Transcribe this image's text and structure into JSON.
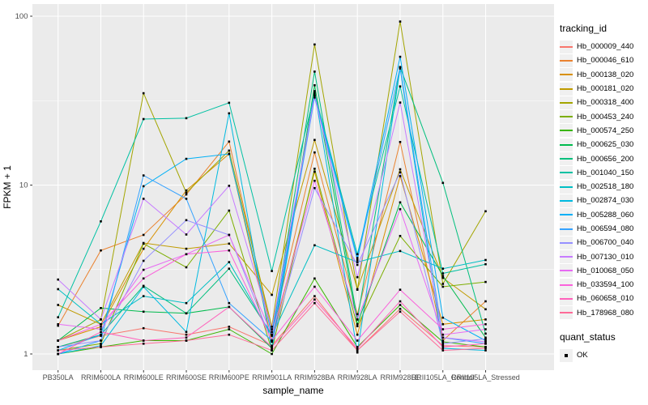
{
  "figure": {
    "background": "#FFFFFF",
    "panel_background": "#EBEBEB",
    "grid_color": "#FFFFFF",
    "axis_text_color": "#4D4D4D",
    "tick_color": "#333333",
    "marker_color": "#000000",
    "legend_key_background": "#F0F0F0"
  },
  "chart_data": {
    "type": "line",
    "title": "",
    "xlabel": "sample_name",
    "ylabel": "FPKM + 1",
    "y_scale": "log10",
    "y_axis_ticks": [
      {
        "label": "1",
        "value": 1
      },
      {
        "label": "10",
        "value": 10
      },
      {
        "label": "100",
        "value": 100
      }
    ],
    "y_minor_gridlines": [
      3.1623,
      31.623
    ],
    "ylim_log10": [
      -0.096,
      2.072
    ],
    "grid": true,
    "legend_position": "right",
    "legend_title": "tracking_id",
    "marker": "black-point",
    "categories": [
      "PB350LA",
      "RRIM600LA",
      "RRIM600LE",
      "RRIM600SE",
      "RRIM600PE",
      "RRIM901LA",
      "RRIM928BA",
      "RRIM928LA",
      "RRIM928LE",
      "RRII105LA_Control",
      "RRII105LA_Stressed"
    ],
    "series": [
      {
        "name": "Hb_000009_440",
        "color": "#F8766D",
        "values": [
          1.1,
          1.28,
          1.42,
          1.3,
          1.45,
          1.12,
          2.2,
          1.05,
          1.85,
          1.12,
          1.1
        ]
      },
      {
        "name": "Hb_000046_610",
        "color": "#EA8331",
        "values": [
          1.47,
          4.1,
          5.07,
          8.8,
          18.1,
          1.35,
          15.6,
          1.72,
          18,
          1.2,
          2.05
        ]
      },
      {
        "name": "Hb_000138_020",
        "color": "#D89000",
        "values": [
          1.2,
          1.45,
          4.2,
          9.3,
          15.3,
          1.2,
          12,
          1.3,
          11.3,
          1.5,
          1.6
        ]
      },
      {
        "name": "Hb_000181_020",
        "color": "#C09B00",
        "values": [
          1.95,
          1.5,
          4.54,
          4.2,
          4.5,
          2.24,
          18.5,
          2.42,
          12.4,
          2.82,
          1.84
        ]
      },
      {
        "name": "Hb_000318_400",
        "color": "#A3A500",
        "values": [
          1.2,
          1.6,
          35,
          9.0,
          16,
          1.45,
          68,
          2.4,
          93,
          2.6,
          7.0
        ]
      },
      {
        "name": "Hb_000453_240",
        "color": "#7CAE00",
        "values": [
          1.05,
          1.15,
          4.5,
          3.26,
          7.06,
          1.05,
          12.5,
          1.46,
          5.0,
          2.5,
          2.67
        ]
      },
      {
        "name": "Hb_000574_250",
        "color": "#39B600",
        "values": [
          1.0,
          1.1,
          1.2,
          1.2,
          1.4,
          1.0,
          2.8,
          1.1,
          1.95,
          1.18,
          1.1
        ]
      },
      {
        "name": "Hb_000625_030",
        "color": "#00BB4E",
        "values": [
          1.2,
          1.87,
          1.78,
          1.74,
          1.9,
          1.08,
          39,
          1.5,
          7.9,
          2.9,
          1.25
        ]
      },
      {
        "name": "Hb_000656_200",
        "color": "#00BF7D",
        "values": [
          1.1,
          1.3,
          2.53,
          1.74,
          3.2,
          1.3,
          47,
          1.6,
          50,
          10.3,
          1.32
        ]
      },
      {
        "name": "Hb_001040_150",
        "color": "#00C1A3",
        "values": [
          1.65,
          6.1,
          24.6,
          24.9,
          30.7,
          3.1,
          35,
          3.9,
          38.4,
          3.0,
          3.4
        ]
      },
      {
        "name": "Hb_002518_180",
        "color": "#00BFC4",
        "values": [
          2.42,
          1.5,
          2.2,
          2.0,
          3.5,
          1.28,
          4.4,
          3.5,
          4.07,
          3.2,
          3.6
        ]
      },
      {
        "name": "Hb_002874_030",
        "color": "#00BAE0",
        "values": [
          1.0,
          1.12,
          2.5,
          1.35,
          26.6,
          1.05,
          36,
          1.02,
          49,
          1.08,
          1.05
        ]
      },
      {
        "name": "Hb_005288_060",
        "color": "#00B0F6",
        "values": [
          1.05,
          1.3,
          9.85,
          14.3,
          15.3,
          1.3,
          34,
          3.7,
          57.5,
          1.64,
          1.2
        ]
      },
      {
        "name": "Hb_006594_080",
        "color": "#35A2FF",
        "values": [
          1.0,
          1.2,
          11.4,
          8.3,
          2.0,
          1.2,
          33,
          3.6,
          50,
          1.25,
          1.15
        ]
      },
      {
        "name": "Hb_006700_040",
        "color": "#9590FF",
        "values": [
          1.1,
          1.2,
          3.56,
          6.2,
          5.07,
          1.18,
          9.6,
          3.37,
          11.9,
          1.15,
          1.23
        ]
      },
      {
        "name": "Hb_007130_010",
        "color": "#C77CFF",
        "values": [
          2.76,
          1.6,
          8.3,
          5.1,
          9.9,
          1.4,
          34,
          2.85,
          30.8,
          1.25,
          1.18
        ]
      },
      {
        "name": "Hb_010068_050",
        "color": "#E76BF3",
        "values": [
          1.5,
          1.4,
          3.15,
          3.9,
          5.07,
          1.3,
          10.6,
          1.6,
          7.2,
          1.3,
          1.4
        ]
      },
      {
        "name": "Hb_033594_100",
        "color": "#FA62DB",
        "values": [
          1.2,
          1.5,
          2.8,
          3.9,
          4.1,
          1.2,
          2.5,
          1.2,
          2.4,
          1.4,
          1.5
        ]
      },
      {
        "name": "Hb_060658_010",
        "color": "#FF62BC",
        "values": [
          1.0,
          1.35,
          1.2,
          1.25,
          1.9,
          1.1,
          2.1,
          1.08,
          2.05,
          1.1,
          1.15
        ]
      },
      {
        "name": "Hb_178968_080",
        "color": "#FF6A98",
        "values": [
          1.05,
          1.1,
          1.15,
          1.2,
          1.3,
          1.05,
          2.0,
          1.05,
          1.78,
          1.05,
          1.08
        ]
      }
    ],
    "quant_legend": {
      "title": "quant_status",
      "items": [
        {
          "label": "OK"
        }
      ]
    }
  }
}
